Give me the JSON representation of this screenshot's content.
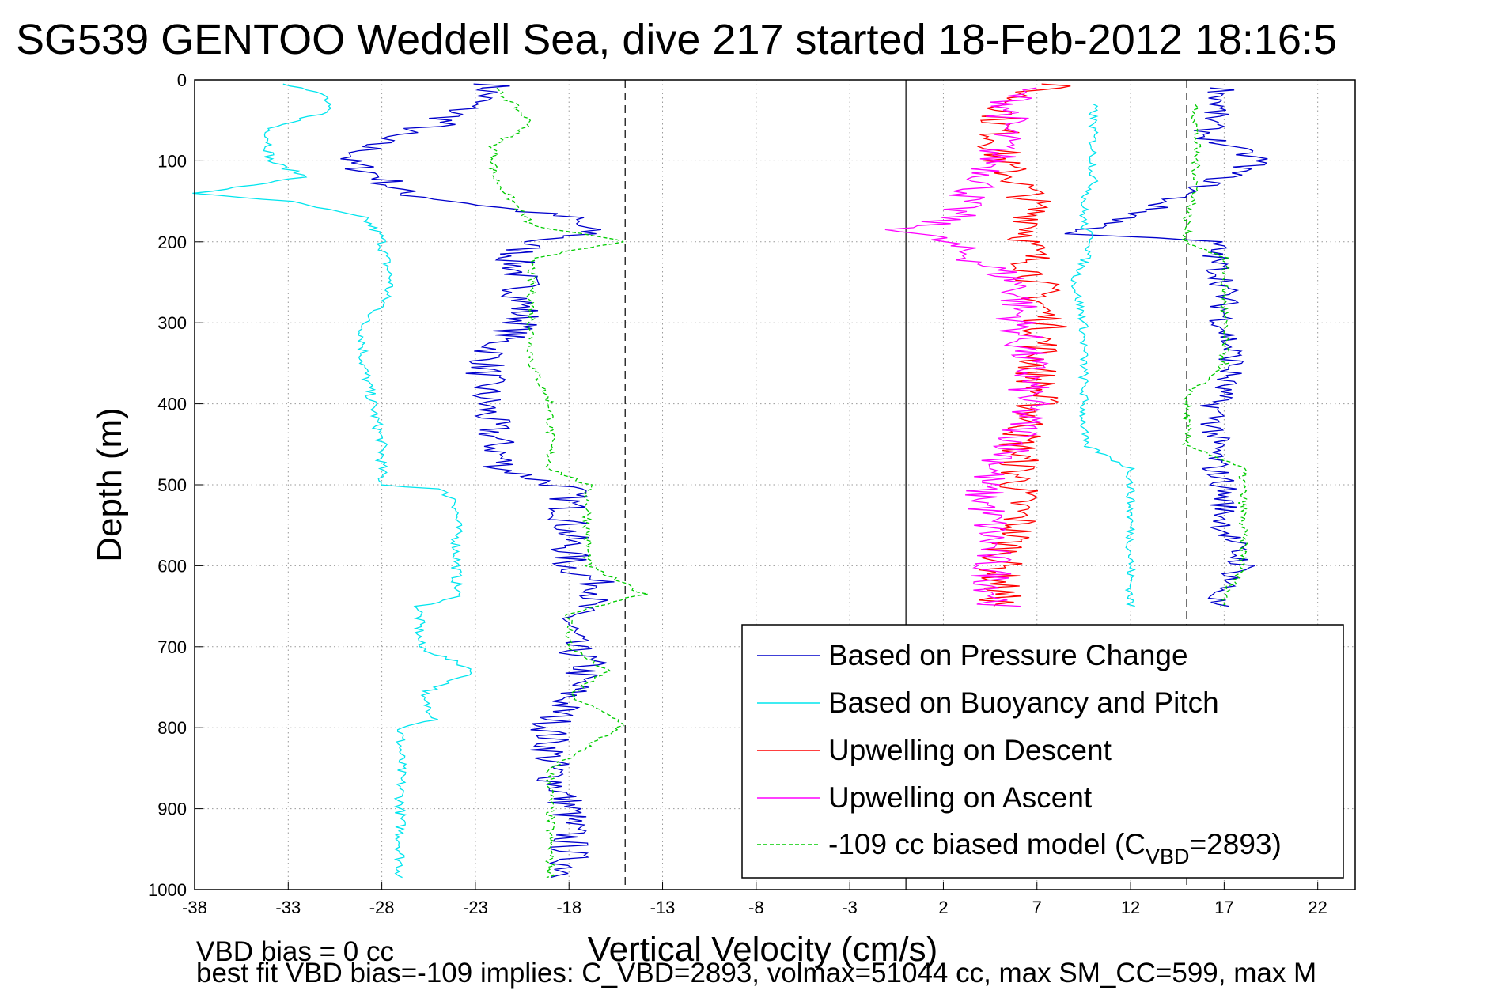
{
  "chart_data": {
    "type": "line",
    "title": "SG539 GENTOO Weddell Sea, dive 217 started 18-Feb-2012 18:16:5",
    "xlabel": "Vertical Velocity (cm/s)",
    "ylabel": "Depth (m)",
    "xlim": [
      -38,
      24
    ],
    "ylim": [
      0,
      1000
    ],
    "y_reversed": true,
    "grid": true,
    "xticks": [
      "-38",
      "-33",
      "-28",
      "-23",
      "-18",
      "-13",
      "-8",
      "-3",
      "2",
      "7",
      "12",
      "17",
      "22"
    ],
    "yticks": [
      "0",
      "100",
      "200",
      "300",
      "400",
      "500",
      "600",
      "700",
      "800",
      "900",
      "1000"
    ],
    "reference_lines": {
      "solid_x": 0,
      "dashed_x": [
        -15,
        15
      ]
    },
    "legend_position": "bottom-right",
    "series": [
      {
        "name": "Based on Pressure Change",
        "color": "#0000cc",
        "style": "solid",
        "depth": [
          5,
          20,
          40,
          55,
          70,
          90,
          100,
          120,
          140,
          150,
          170,
          190,
          200,
          220,
          250,
          280,
          300,
          330,
          360,
          400,
          440,
          480,
          505,
          520,
          560,
          600,
          630,
          660,
          700,
          720,
          760,
          800,
          850,
          900,
          950,
          985
        ],
        "values": [
          -22,
          -22.5,
          -24,
          -25,
          -28,
          -29,
          -30,
          -28,
          -27,
          -24,
          -18,
          -17,
          -20,
          -21,
          -20.5,
          -20.5,
          -20.5,
          -22,
          -22.5,
          -22.5,
          -22,
          -21.5,
          -18,
          -18,
          -18,
          -18,
          -16,
          -18,
          -18,
          -17,
          -18,
          -19,
          -19,
          -18,
          -18,
          -18
        ]
      },
      {
        "name": "Based on Buoyancy and Pitch",
        "color": "#00e5ee",
        "style": "solid",
        "depth": [
          5,
          20,
          40,
          60,
          80,
          100,
          120,
          140,
          150,
          170,
          195,
          200,
          250,
          280,
          300,
          350,
          400,
          450,
          500,
          505,
          520,
          560,
          600,
          640,
          650,
          700,
          730,
          760,
          790,
          800,
          850,
          900,
          950,
          985
        ],
        "values": [
          -33,
          -31,
          -31,
          -34,
          -34,
          -34,
          -32,
          -38,
          -33,
          -29,
          -28,
          -28,
          -27.5,
          -28,
          -29,
          -29,
          -28.5,
          -28,
          -28,
          -25,
          -24,
          -24,
          -24,
          -24,
          -26,
          -26,
          -23,
          -26,
          -25,
          -27,
          -27,
          -27,
          -27,
          -27
        ]
      },
      {
        "name": "Upwelling on Descent",
        "color": "#ff0000",
        "style": "solid",
        "depth": [
          5,
          20,
          50,
          80,
          100,
          140,
          180,
          200,
          250,
          300,
          350,
          400,
          450,
          500,
          550,
          600,
          650
        ],
        "values": [
          8,
          6,
          5,
          5,
          5,
          6.5,
          7,
          6.5,
          7,
          7.5,
          7,
          7,
          6,
          6,
          6,
          5,
          5
        ]
      },
      {
        "name": "Upwelling on Ascent",
        "color": "#ff00ff",
        "style": "solid",
        "depth": [
          10,
          40,
          80,
          120,
          150,
          170,
          185,
          200,
          250,
          300,
          350,
          400,
          450,
          500,
          550,
          600,
          650
        ],
        "values": [
          6,
          5.5,
          5,
          4.5,
          3,
          2.5,
          0,
          2,
          6,
          6,
          6.5,
          6.5,
          6,
          4,
          4.5,
          4.5,
          5
        ]
      },
      {
        "name": "-109 cc biased model (CVBD=2893)",
        "color": "#00cc00",
        "style": "dashed",
        "depth": [
          10,
          30,
          55,
          80,
          100,
          120,
          150,
          180,
          200,
          220,
          250,
          300,
          350,
          400,
          440,
          480,
          500,
          510,
          550,
          600,
          635,
          660,
          700,
          730,
          760,
          795,
          850,
          900,
          950,
          985
        ],
        "values": [
          -22,
          -21,
          -20,
          -22,
          -22,
          -22,
          -21,
          -20,
          -15,
          -20,
          -20,
          -20,
          -20,
          -19,
          -19,
          -19,
          -17,
          -17,
          -17,
          -17,
          -14,
          -18,
          -18,
          -16,
          -18,
          -15,
          -19,
          -19,
          -19,
          -19
        ]
      }
    ],
    "right_segments": [
      {
        "color": "#0000cc",
        "depth": [
          10,
          40,
          70,
          100,
          120,
          150,
          170,
          190,
          200,
          220,
          250,
          300,
          350,
          400,
          450,
          480,
          500,
          550,
          600,
          640,
          650
        ],
        "values": [
          17,
          16.5,
          16,
          19,
          17,
          14,
          12,
          9,
          16.5,
          16.5,
          17,
          17,
          17.5,
          16.5,
          16.5,
          16.5,
          17,
          17,
          18,
          16.5,
          16.5
        ]
      },
      {
        "color": "#00e5ee",
        "depth": [
          30,
          60,
          100,
          130,
          150,
          180,
          200,
          250,
          300,
          350,
          400,
          450,
          480,
          500,
          550,
          600,
          640,
          650
        ],
        "values": [
          10,
          10,
          10,
          10,
          9.5,
          9.5,
          10,
          9,
          9.5,
          9.5,
          9.5,
          9.5,
          12,
          12,
          12,
          12,
          12,
          12
        ]
      },
      {
        "color": "#00cc00",
        "depth": [
          30,
          60,
          100,
          140,
          170,
          200,
          220,
          250,
          300,
          350,
          390,
          400,
          450,
          480,
          500,
          550,
          600,
          640,
          650
        ],
        "values": [
          15.5,
          15.5,
          15.5,
          15.5,
          15,
          15,
          17,
          17,
          17,
          17,
          15,
          15,
          15,
          18,
          18,
          18,
          18,
          17,
          17
        ]
      }
    ],
    "legend": [
      "Based on Pressure Change",
      "Based on Buoyancy and Pitch",
      "Upwelling on Descent",
      "Upwelling on Ascent"
    ],
    "legend_last": {
      "prefix": "-109 cc biased model (C",
      "subscript": "VBD",
      "suffix": "=2893)"
    },
    "annotations": {
      "vbd_bias": "VBD bias = 0 cc",
      "best_fit": "best fit VBD bias=-109 implies: C_VBD=2893, volmax=51044 cc, max SM_CC=599, max M"
    }
  }
}
